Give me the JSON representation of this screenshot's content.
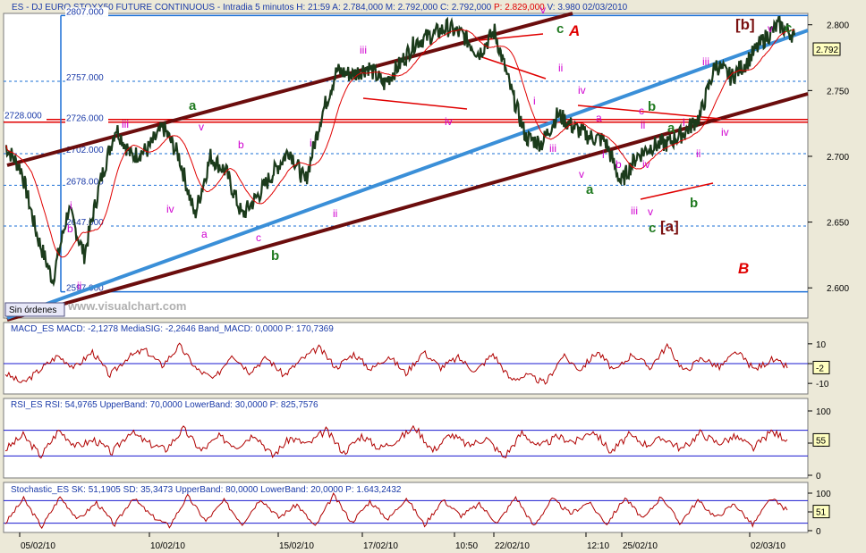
{
  "header": {
    "symbol": "ES",
    "instrument": "DJ EURO STOXX50 FUTURE CONTINUOUS",
    "interval": "Intradia 5 minutos",
    "h": "H: 21:59",
    "a": "A: 2.784,000",
    "m": "M: 2.792,000",
    "c": "C: 2.792,000",
    "p": "P: 2.829,000",
    "v": "V: 3.980",
    "date": "02/03/2010"
  },
  "watermark": "www.visualchart.com",
  "order_label": "Sin órdenes",
  "last_price_tag": "2.792",
  "colors": {
    "bg": "#ffffff",
    "page": "#ece9d8",
    "blue": "#1a6fd6",
    "channel": "#6b0d0d",
    "ma": "#e00000",
    "wave_green": "#207a20",
    "wave_magenta": "#d000d0",
    "wave_maroon": "#7a1010",
    "wave_red": "#e00000",
    "osc_line": "#b00000"
  },
  "chart_data": [
    {
      "type": "line",
      "title": "ES - DJ EURO STOXX50 FUTURE CONTINUOUS - Intradia 5 minutos",
      "x_ticks": [
        "05/02/10",
        "10/02/10",
        "15/02/10",
        "17/02/10",
        "10:50",
        "22/02/10",
        "12:10",
        "25/02/10",
        "02/03/10"
      ],
      "y_ticks": [
        "2.800",
        "2.750",
        "2.700",
        "2.650",
        "2.600"
      ],
      "ylim": [
        2590,
        2818
      ],
      "y_scale_labels": [
        2800,
        2750,
        2700,
        2650,
        2600
      ],
      "price_levels": [
        {
          "label": "2807.000",
          "value": 2807
        },
        {
          "label": "2757.000",
          "value": 2757
        },
        {
          "label": "2728.000",
          "value": 2728
        },
        {
          "label": "2726.000",
          "value": 2726
        },
        {
          "label": "2702.000",
          "value": 2702
        },
        {
          "label": "2678.000",
          "value": 2678
        },
        {
          "label": "2647.000",
          "value": 2647
        },
        {
          "label": "2597.000",
          "value": 2597
        }
      ],
      "series": [
        {
          "x": [
            0,
            2,
            4,
            6,
            8,
            10,
            12,
            14,
            16,
            18,
            20,
            22,
            24,
            26,
            28,
            30,
            32,
            34,
            36,
            38,
            40,
            42,
            44,
            46,
            48,
            50,
            52,
            54,
            56,
            58,
            60,
            62,
            64,
            66,
            68,
            70,
            72,
            74,
            76,
            78,
            80,
            82,
            84,
            86,
            88,
            90,
            92,
            94,
            96,
            98,
            100
          ],
          "values": [
            2708,
            2690,
            2640,
            2606,
            2660,
            2625,
            2680,
            2722,
            2700,
            2705,
            2722,
            2700,
            2655,
            2700,
            2688,
            2655,
            2670,
            2688,
            2705,
            2680,
            2730,
            2765,
            2762,
            2768,
            2755,
            2770,
            2787,
            2792,
            2798,
            2792,
            2778,
            2795,
            2752,
            2714,
            2710,
            2732,
            2722,
            2715,
            2712,
            2680,
            2700,
            2708,
            2710,
            2718,
            2730,
            2770,
            2760,
            2772,
            2788,
            2800,
            2792
          ]
        }
      ],
      "annotations": [
        "A",
        "B",
        "[a]",
        "[b]",
        "a",
        "b",
        "c",
        "i",
        "ii",
        "iii",
        "iv",
        "v"
      ]
    },
    {
      "type": "line",
      "title": "MACD_ES",
      "stats": "MACD: -2,1278  MediaSIG: -2,2646  Band_MACD: 0,0000  P: 170,7369",
      "y_ticks": [
        "10",
        "0",
        "-10"
      ],
      "ylim": [
        -14,
        14
      ],
      "last_value_tag": "-2",
      "series": [
        {
          "name": "MACD",
          "values": [
            -5,
            -10,
            -3,
            4,
            -2,
            6,
            -6,
            3,
            7,
            -1,
            9,
            -3,
            -8,
            5,
            -4,
            3,
            -6,
            2,
            8,
            -2,
            5,
            -3,
            4,
            -5,
            6,
            -2,
            3,
            -4,
            5,
            -8,
            -6,
            -10,
            4,
            -3,
            6,
            -4,
            5,
            -2,
            9,
            -4,
            3,
            -2,
            6,
            -3,
            2,
            -2
          ]
        }
      ]
    },
    {
      "type": "line",
      "title": "RSI_ES",
      "stats": "RSI: 54,9765  UpperBand: 70,0000  LowerBand: 30,0000  P: 825,7576",
      "y_ticks": [
        "100",
        "50",
        "0"
      ],
      "ylim": [
        0,
        100
      ],
      "bands": [
        70,
        30
      ],
      "last_value_tag": "55",
      "series": [
        {
          "name": "RSI",
          "values": [
            40,
            62,
            30,
            70,
            45,
            55,
            35,
            68,
            50,
            40,
            72,
            38,
            60,
            45,
            65,
            30,
            58,
            48,
            70,
            35,
            62,
            42,
            55,
            75,
            38,
            64,
            46,
            58,
            28,
            66,
            44,
            60,
            52,
            70,
            36,
            62,
            48,
            58,
            40,
            66,
            50,
            60,
            42,
            68,
            55
          ]
        }
      ]
    },
    {
      "type": "line",
      "title": "Stochastic_ES",
      "stats": "SK: 51,1905  SD: 35,3473  UpperBand: 80,0000  LowerBand: 20,0000  P: 1.643,2432",
      "y_ticks": [
        "100",
        "50",
        "0"
      ],
      "ylim": [
        0,
        100
      ],
      "bands": [
        80,
        20
      ],
      "last_value_tag": "51",
      "series": [
        {
          "name": "SK",
          "values": [
            20,
            85,
            10,
            90,
            30,
            75,
            15,
            88,
            40,
            12,
            92,
            25,
            80,
            18,
            86,
            35,
            70,
            10,
            95,
            22,
            78,
            30,
            88,
            15,
            82,
            40,
            70,
            20,
            90,
            12,
            85,
            45,
            76,
            18,
            88,
            30,
            92,
            20,
            80,
            35,
            72,
            15,
            86,
            51
          ]
        }
      ]
    }
  ]
}
